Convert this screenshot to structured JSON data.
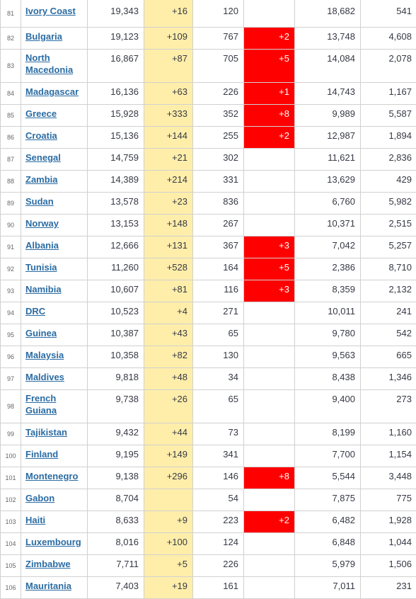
{
  "rows": [
    {
      "rank": "81",
      "country": "Ivory Coast",
      "total": "19,343",
      "new_cases": "+16",
      "deaths": "120",
      "new_deaths": "",
      "recovered": "18,682",
      "active": "541"
    },
    {
      "rank": "82",
      "country": "Bulgaria",
      "total": "19,123",
      "new_cases": "+109",
      "deaths": "767",
      "new_deaths": "+2",
      "recovered": "13,748",
      "active": "4,608"
    },
    {
      "rank": "83",
      "country": "North Macedonia",
      "total": "16,867",
      "new_cases": "+87",
      "deaths": "705",
      "new_deaths": "+5",
      "recovered": "14,084",
      "active": "2,078"
    },
    {
      "rank": "84",
      "country": "Madagascar",
      "total": "16,136",
      "new_cases": "+63",
      "deaths": "226",
      "new_deaths": "+1",
      "recovered": "14,743",
      "active": "1,167"
    },
    {
      "rank": "85",
      "country": "Greece",
      "total": "15,928",
      "new_cases": "+333",
      "deaths": "352",
      "new_deaths": "+8",
      "recovered": "9,989",
      "active": "5,587"
    },
    {
      "rank": "86",
      "country": "Croatia",
      "total": "15,136",
      "new_cases": "+144",
      "deaths": "255",
      "new_deaths": "+2",
      "recovered": "12,987",
      "active": "1,894"
    },
    {
      "rank": "87",
      "country": "Senegal",
      "total": "14,759",
      "new_cases": "+21",
      "deaths": "302",
      "new_deaths": "",
      "recovered": "11,621",
      "active": "2,836"
    },
    {
      "rank": "88",
      "country": "Zambia",
      "total": "14,389",
      "new_cases": "+214",
      "deaths": "331",
      "new_deaths": "",
      "recovered": "13,629",
      "active": "429"
    },
    {
      "rank": "89",
      "country": "Sudan",
      "total": "13,578",
      "new_cases": "+23",
      "deaths": "836",
      "new_deaths": "",
      "recovered": "6,760",
      "active": "5,982"
    },
    {
      "rank": "90",
      "country": "Norway",
      "total": "13,153",
      "new_cases": "+148",
      "deaths": "267",
      "new_deaths": "",
      "recovered": "10,371",
      "active": "2,515"
    },
    {
      "rank": "91",
      "country": "Albania",
      "total": "12,666",
      "new_cases": "+131",
      "deaths": "367",
      "new_deaths": "+3",
      "recovered": "7,042",
      "active": "5,257"
    },
    {
      "rank": "92",
      "country": "Tunisia",
      "total": "11,260",
      "new_cases": "+528",
      "deaths": "164",
      "new_deaths": "+5",
      "recovered": "2,386",
      "active": "8,710"
    },
    {
      "rank": "93",
      "country": "Namibia",
      "total": "10,607",
      "new_cases": "+81",
      "deaths": "116",
      "new_deaths": "+3",
      "recovered": "8,359",
      "active": "2,132"
    },
    {
      "rank": "94",
      "country": "DRC",
      "total": "10,523",
      "new_cases": "+4",
      "deaths": "271",
      "new_deaths": "",
      "recovered": "10,011",
      "active": "241"
    },
    {
      "rank": "95",
      "country": "Guinea",
      "total": "10,387",
      "new_cases": "+43",
      "deaths": "65",
      "new_deaths": "",
      "recovered": "9,780",
      "active": "542"
    },
    {
      "rank": "96",
      "country": "Malaysia",
      "total": "10,358",
      "new_cases": "+82",
      "deaths": "130",
      "new_deaths": "",
      "recovered": "9,563",
      "active": "665"
    },
    {
      "rank": "97",
      "country": "Maldives",
      "total": "9,818",
      "new_cases": "+48",
      "deaths": "34",
      "new_deaths": "",
      "recovered": "8,438",
      "active": "1,346"
    },
    {
      "rank": "98",
      "country": "French Guiana",
      "total": "9,738",
      "new_cases": "+26",
      "deaths": "65",
      "new_deaths": "",
      "recovered": "9,400",
      "active": "273"
    },
    {
      "rank": "99",
      "country": "Tajikistan",
      "total": "9,432",
      "new_cases": "+44",
      "deaths": "73",
      "new_deaths": "",
      "recovered": "8,199",
      "active": "1,160"
    },
    {
      "rank": "100",
      "country": "Finland",
      "total": "9,195",
      "new_cases": "+149",
      "deaths": "341",
      "new_deaths": "",
      "recovered": "7,700",
      "active": "1,154"
    },
    {
      "rank": "101",
      "country": "Montenegro",
      "total": "9,138",
      "new_cases": "+296",
      "deaths": "146",
      "new_deaths": "+8",
      "recovered": "5,544",
      "active": "3,448"
    },
    {
      "rank": "102",
      "country": "Gabon",
      "total": "8,704",
      "new_cases": "",
      "deaths": "54",
      "new_deaths": "",
      "recovered": "7,875",
      "active": "775"
    },
    {
      "rank": "103",
      "country": "Haiti",
      "total": "8,633",
      "new_cases": "+9",
      "deaths": "223",
      "new_deaths": "+2",
      "recovered": "6,482",
      "active": "1,928"
    },
    {
      "rank": "104",
      "country": "Luxembourg",
      "total": "8,016",
      "new_cases": "+100",
      "deaths": "124",
      "new_deaths": "",
      "recovered": "6,848",
      "active": "1,044"
    },
    {
      "rank": "105",
      "country": "Zimbabwe",
      "total": "7,711",
      "new_cases": "+5",
      "deaths": "226",
      "new_deaths": "",
      "recovered": "5,979",
      "active": "1,506"
    },
    {
      "rank": "106",
      "country": "Mauritania",
      "total": "7,403",
      "new_cases": "+19",
      "deaths": "161",
      "new_deaths": "",
      "recovered": "7,011",
      "active": "231"
    }
  ],
  "colors": {
    "new_cases_bg": "#ffeeaa",
    "new_deaths_bg": "#ff0000",
    "link": "#2b6ca3"
  }
}
